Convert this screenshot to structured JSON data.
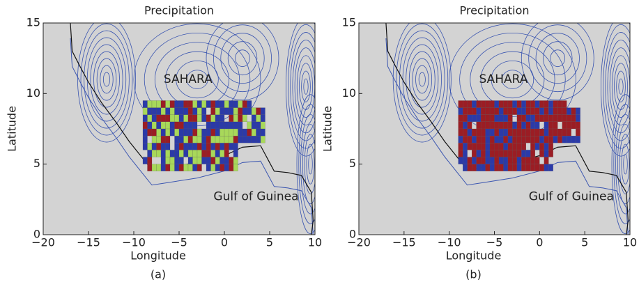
{
  "chart_data": [
    {
      "type": "map",
      "title": "Precipitation",
      "xlabel": "Longitude",
      "ylabel": "Latitude",
      "xlim": [
        -20,
        10
      ],
      "ylim": [
        0,
        15
      ],
      "xticks": [
        {
          "value": -20,
          "label": "−20"
        },
        {
          "value": -15,
          "label": "−15"
        },
        {
          "value": -10,
          "label": "−10"
        },
        {
          "value": -5,
          "label": "−5"
        },
        0,
        5,
        10
      ],
      "yticks": [
        0,
        5,
        10,
        15
      ],
      "annotations": [
        "SAHARA",
        "Gulf of Guinea"
      ],
      "caption": "(a)"
    },
    {
      "type": "map",
      "title": "Precipitation",
      "xlabel": "Longitude",
      "ylabel": "Latitude",
      "xlim": [
        -20,
        10
      ],
      "ylim": [
        0,
        15
      ],
      "xticks": [
        {
          "value": -20,
          "label": "−20"
        },
        {
          "value": -15,
          "label": "−15"
        },
        {
          "value": -10,
          "label": "−10"
        },
        {
          "value": -5,
          "label": "−5"
        },
        0,
        5,
        10
      ],
      "yticks": [
        0,
        5,
        10,
        15
      ],
      "annotations": [
        "SAHARA",
        "Gulf of Guinea"
      ],
      "caption": "(b)"
    }
  ]
}
